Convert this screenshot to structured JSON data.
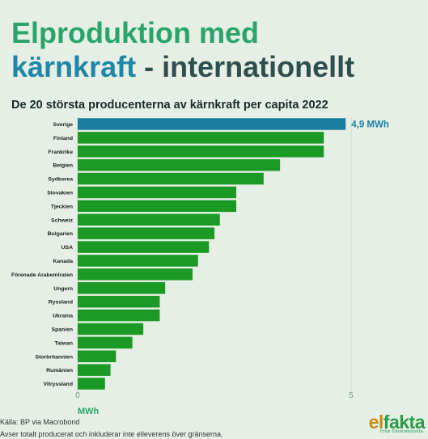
{
  "header": {
    "title_line1": "Elproduktion med",
    "title_accent": "kärnkraft",
    "title_rest": " - internationellt"
  },
  "chart_data": {
    "type": "bar",
    "orientation": "horizontal",
    "title": "De 20 största producenterna av kärnkraft per capita 2022",
    "xlabel": "MWh",
    "ylabel": "",
    "xlim": [
      0,
      5
    ],
    "xticks": [
      "0",
      "5"
    ],
    "categories": [
      "Sverige",
      "Finland",
      "Frankrike",
      "Belgien",
      "Sydkorea",
      "Slovakien",
      "Tjeckien",
      "Schweiz",
      "Bulgarien",
      "USA",
      "Kanada",
      "Förenade Arabemiraten",
      "Ungern",
      "Ryssland",
      "Ukraina",
      "Spanien",
      "Taiwan",
      "Storbritannien",
      "Rumänien",
      "Vitryssland"
    ],
    "values": [
      4.9,
      4.5,
      4.5,
      3.7,
      3.4,
      2.9,
      2.9,
      2.6,
      2.5,
      2.4,
      2.2,
      2.1,
      1.6,
      1.5,
      1.5,
      1.2,
      1.0,
      0.7,
      0.6,
      0.5
    ],
    "highlight_index": 0,
    "highlight_label": "4,9 MWh",
    "colors": {
      "bar": "#1a9a24",
      "highlight": "#1a7f9e",
      "grid": "#cfdccf"
    },
    "grid": true
  },
  "footer": {
    "source": "Källa: BP via Macrobond",
    "note": "Avser totalt producerat och inkluderar inte elleverens över gränserna.",
    "logo_el": "el",
    "logo_fakta": "fakta",
    "logo_sub": "Från Ekonomifakta"
  }
}
